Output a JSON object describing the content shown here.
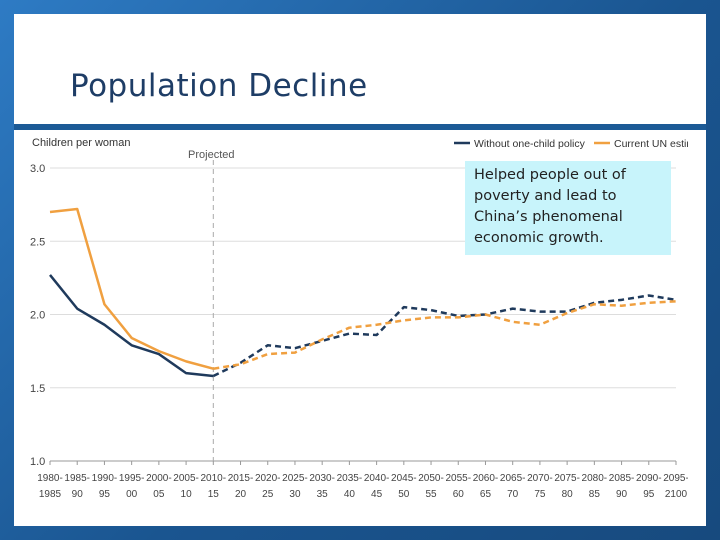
{
  "slide": {
    "title": "Population Decline",
    "callout": "Helped people out of poverty and lead to China’s phenomenal economic growth."
  },
  "colors": {
    "background": "#1f5f9c",
    "title": "#1e3d66",
    "series_without_policy": "#1f3a5c",
    "series_un_estimate": "#f0a040",
    "callout_fill": "#c8f4fb"
  },
  "chart_data": {
    "type": "line",
    "ylabel": "Children per woman",
    "projected_label": "Projected",
    "projected_after": "2010-15",
    "ylim": [
      1.0,
      3.0
    ],
    "yticks": [
      "3.0",
      "2.5",
      "2.0",
      "1.5",
      "1.0"
    ],
    "grid": true,
    "legend_position": "top-right",
    "categories": [
      [
        "1980-",
        "1985"
      ],
      [
        "1985-",
        "90"
      ],
      [
        "1990-",
        "95"
      ],
      [
        "1995-",
        "00"
      ],
      [
        "2000-",
        "05"
      ],
      [
        "2005-",
        "10"
      ],
      [
        "2010-",
        "15"
      ],
      [
        "2015-",
        "20"
      ],
      [
        "2020-",
        "25"
      ],
      [
        "2025-",
        "30"
      ],
      [
        "2030-",
        "35"
      ],
      [
        "2035-",
        "40"
      ],
      [
        "2040-",
        "45"
      ],
      [
        "2045-",
        "50"
      ],
      [
        "2050-",
        "55"
      ],
      [
        "2055-",
        "60"
      ],
      [
        "2060-",
        "65"
      ],
      [
        "2065-",
        "70"
      ],
      [
        "2070-",
        "75"
      ],
      [
        "2075-",
        "80"
      ],
      [
        "2080-",
        "85"
      ],
      [
        "2085-",
        "90"
      ],
      [
        "2090-",
        "95"
      ],
      [
        "2095-",
        "2100"
      ]
    ],
    "series": [
      {
        "name": "Without one-child policy",
        "color": "#1f3a5c",
        "values": [
          2.27,
          2.04,
          1.93,
          1.79,
          1.73,
          1.6,
          1.58,
          1.67,
          1.79,
          1.77,
          1.82,
          1.87,
          1.86,
          2.05,
          2.03,
          1.99,
          2.0,
          2.04,
          2.02,
          2.02,
          2.08,
          2.1,
          2.13,
          2.1
        ]
      },
      {
        "name": "Current UN estimate",
        "color": "#f0a040",
        "values": [
          2.7,
          2.72,
          2.07,
          1.84,
          1.75,
          1.68,
          1.63,
          1.66,
          1.73,
          1.74,
          1.83,
          1.91,
          1.93,
          1.96,
          1.98,
          1.98,
          2.0,
          1.95,
          1.93,
          2.01,
          2.07,
          2.06,
          2.08,
          2.09
        ]
      }
    ]
  }
}
